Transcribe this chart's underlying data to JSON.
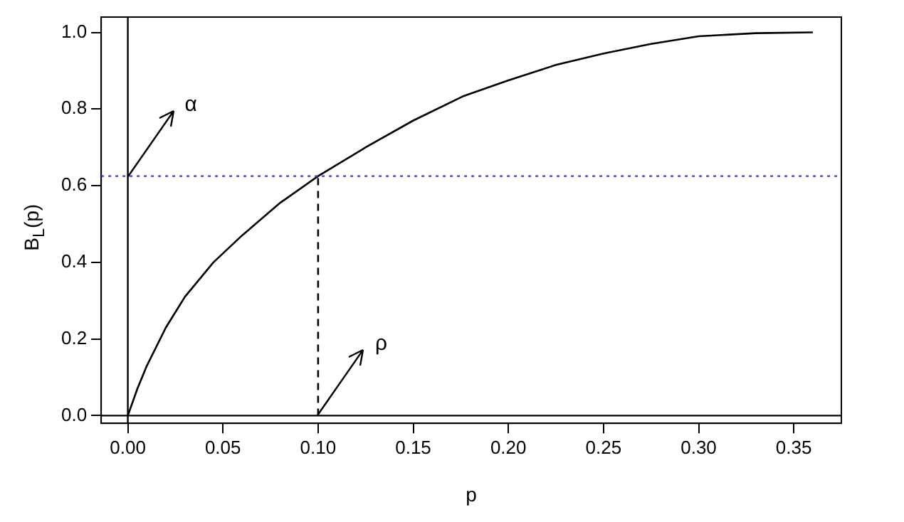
{
  "chart_data": {
    "type": "line",
    "xlabel": "p",
    "ylabel": "B$_{L}$(p)",
    "xlim": [
      -0.014,
      0.375
    ],
    "ylim": [
      -0.02,
      1.04
    ],
    "xticks": [
      {
        "value": 0,
        "label": "0.00"
      },
      {
        "value": 0.05,
        "label": "0.05"
      },
      {
        "value": 0.1,
        "label": "0.10"
      },
      {
        "value": 0.15,
        "label": "0.15"
      },
      {
        "value": 0.2,
        "label": "0.20"
      },
      {
        "value": 0.25,
        "label": "0.25"
      },
      {
        "value": 0.3,
        "label": "0.30"
      },
      {
        "value": 0.35,
        "label": "0.35"
      }
    ],
    "yticks": [
      {
        "value": 0,
        "label": "0.0"
      },
      {
        "value": 0.2,
        "label": "0.2"
      },
      {
        "value": 0.4,
        "label": "0.4"
      },
      {
        "value": 0.6,
        "label": "0.6"
      },
      {
        "value": 0.8,
        "label": "0.8"
      },
      {
        "value": 1,
        "label": "1.0"
      }
    ],
    "marker": "none",
    "series": [
      {
        "color": "#000000",
        "x": [
          0,
          0.005,
          0.01,
          0.02,
          0.03,
          0.045,
          0.06,
          0.08,
          0.1,
          0.125,
          0.15,
          0.176,
          0.2,
          0.225,
          0.25,
          0.275,
          0.3,
          0.33,
          0.36
        ],
        "values": [
          0,
          0.07,
          0.13,
          0.23,
          0.31,
          0.4,
          0.47,
          0.555,
          0.625,
          0.7,
          0.77,
          0.833,
          0.875,
          0.915,
          0.945,
          0.97,
          0.99,
          0.998,
          1
        ]
      },
      {
        "color": "#000000",
        "line_style": "dashed",
        "x": [
          0.1,
          0.1
        ],
        "values": [
          0,
          0.625
        ]
      }
    ],
    "ref_lines": [
      {
        "axis": "y",
        "value": 0.625,
        "color": "#3a3ad0",
        "line_style": "dotted"
      },
      {
        "axis": "x",
        "value": 0,
        "color": "#000000",
        "line_style": "solid"
      },
      {
        "axis": "y",
        "value": 0,
        "color": "#000000",
        "line_style": "solid"
      }
    ],
    "annotations": [
      {
        "text": "α",
        "x": 0,
        "y": 0.625
      },
      {
        "text": "ρ",
        "x": 0.1,
        "y": 0
      }
    ]
  }
}
